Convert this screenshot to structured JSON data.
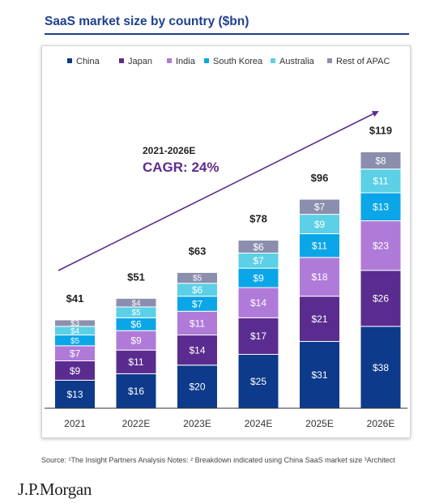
{
  "title": "SaaS market size by country ($bn)",
  "source": "Source: ¹The Insight Partners Analysis Notes: ²  Breakdown indicated using China SaaS market size ³Architect",
  "logo": "J.P.Morgan",
  "annotation": {
    "period": "2021-2026E",
    "cagr": "CAGR: 24%"
  },
  "chart_data": {
    "type": "bar",
    "stacked": true,
    "categories": [
      "2021",
      "2022E",
      "2023E",
      "2024E",
      "2025E",
      "2026E"
    ],
    "series": [
      {
        "name": "China",
        "color": "#0d3a8a",
        "values": [
          13,
          16,
          20,
          25,
          31,
          38
        ]
      },
      {
        "name": "Japan",
        "color": "#5b2c8f",
        "values": [
          9,
          11,
          14,
          17,
          21,
          26
        ]
      },
      {
        "name": "India",
        "color": "#b07ad9",
        "values": [
          7,
          9,
          11,
          14,
          18,
          23
        ]
      },
      {
        "name": "South Korea",
        "color": "#0aa6e8",
        "values": [
          5,
          6,
          7,
          9,
          11,
          13
        ]
      },
      {
        "name": "Australia",
        "color": "#5bd0e6",
        "values": [
          4,
          5,
          6,
          7,
          9,
          11
        ]
      },
      {
        "name": "Rest of APAC",
        "color": "#8b8fad",
        "values": [
          3,
          4,
          5,
          6,
          7,
          8
        ]
      }
    ],
    "totals": [
      41,
      51,
      63,
      78,
      96,
      119
    ],
    "value_prefix": "$",
    "total_prefix": "$",
    "legend_position": "top",
    "grid": false
  }
}
